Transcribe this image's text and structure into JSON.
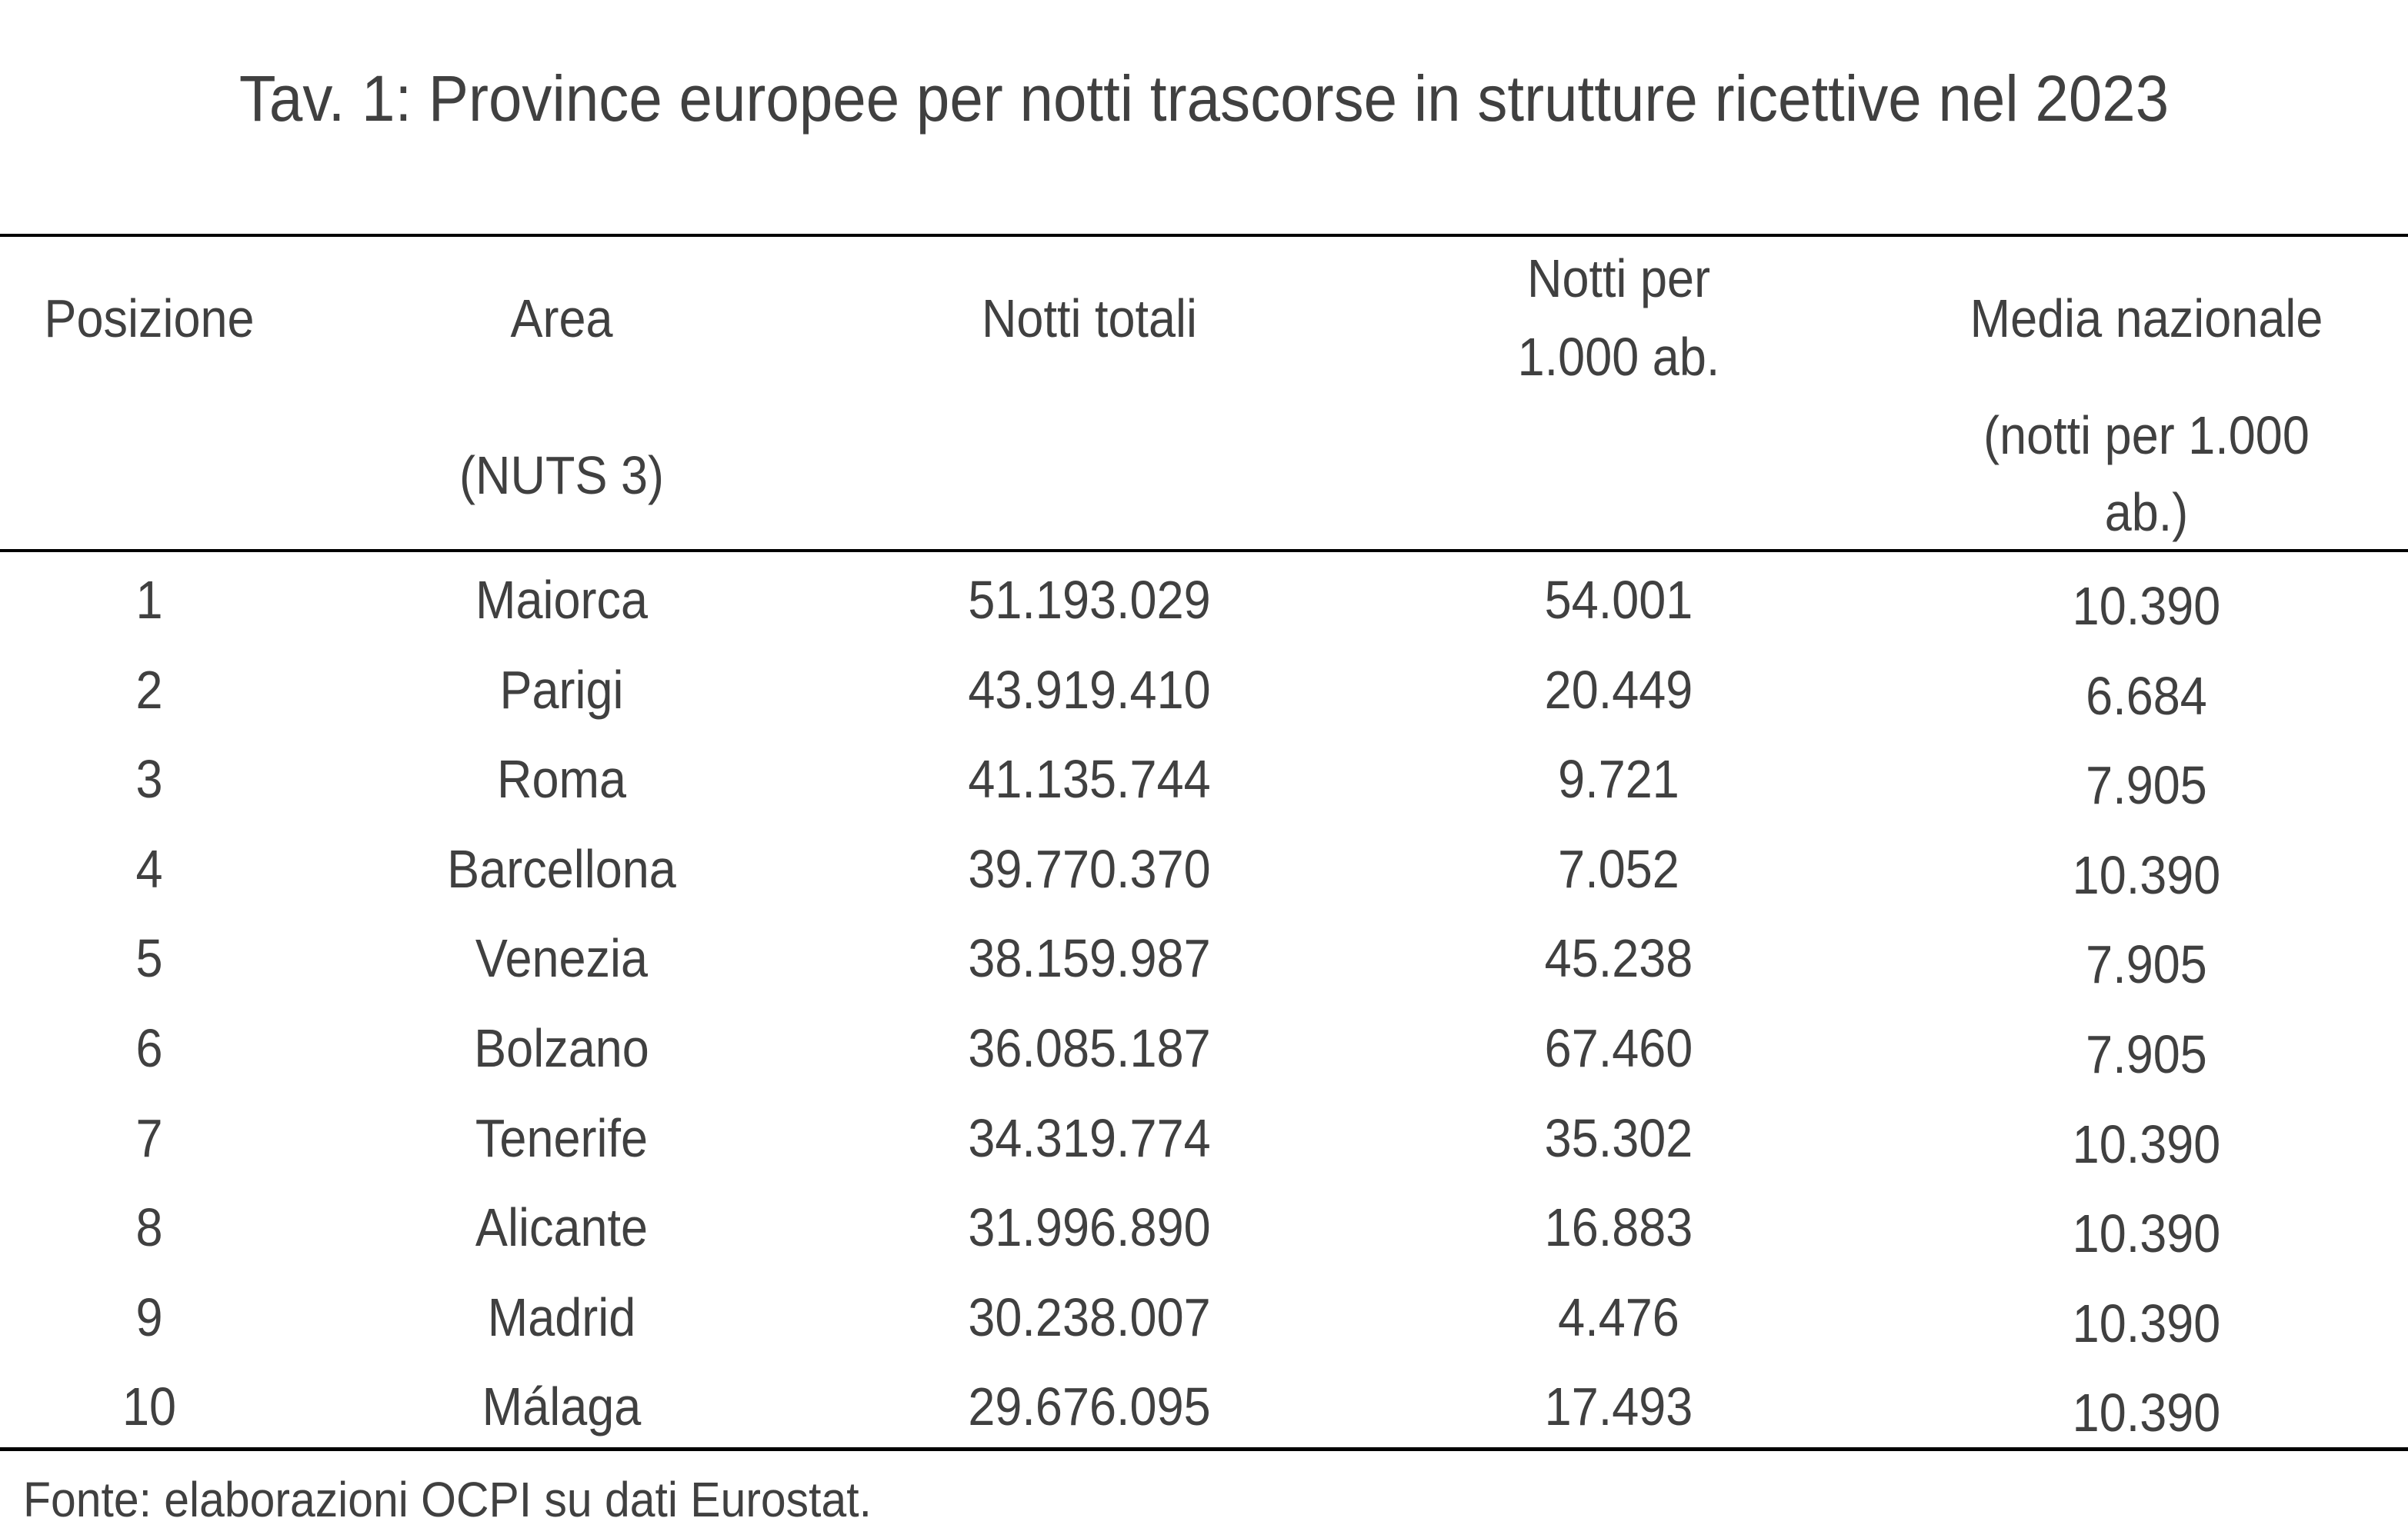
{
  "title": "Tav. 1: Province europee per notti trascorse in strutture ricettive nel 2023",
  "headers": {
    "posizione": "Posizione",
    "area": "Area",
    "area_sub": "(NUTS 3)",
    "notti_totali": "Notti totali",
    "notti_per_1": "Notti per",
    "notti_per_2": "1.000 ab.",
    "media": "Media nazionale",
    "media_sub_1": "(notti per 1.000",
    "media_sub_2": "ab.)"
  },
  "rows": [
    {
      "pos": "1",
      "area": "Maiorca",
      "totali": "51.193.029",
      "per1000": "54.001",
      "media": "10.390"
    },
    {
      "pos": "2",
      "area": "Parigi",
      "totali": "43.919.410",
      "per1000": "20.449",
      "media": "6.684"
    },
    {
      "pos": "3",
      "area": "Roma",
      "totali": "41.135.744",
      "per1000": "9.721",
      "media": "7.905"
    },
    {
      "pos": "4",
      "area": "Barcellona",
      "totali": "39.770.370",
      "per1000": "7.052",
      "media": "10.390"
    },
    {
      "pos": "5",
      "area": "Venezia",
      "totali": "38.159.987",
      "per1000": "45.238",
      "media": "7.905"
    },
    {
      "pos": "6",
      "area": "Bolzano",
      "totali": "36.085.187",
      "per1000": "67.460",
      "media": "7.905"
    },
    {
      "pos": "7",
      "area": "Tenerife",
      "totali": "34.319.774",
      "per1000": "35.302",
      "media": "10.390"
    },
    {
      "pos": "8",
      "area": "Alicante",
      "totali": "31.996.890",
      "per1000": "16.883",
      "media": "10.390"
    },
    {
      "pos": "9",
      "area": "Madrid",
      "totali": "30.238.007",
      "per1000": "4.476",
      "media": "10.390"
    },
    {
      "pos": "10",
      "area": "Málaga",
      "totali": "29.676.095",
      "per1000": "17.493",
      "media": "10.390"
    }
  ],
  "footer": "Fonte: elaborazioni OCPI su dati Eurostat."
}
